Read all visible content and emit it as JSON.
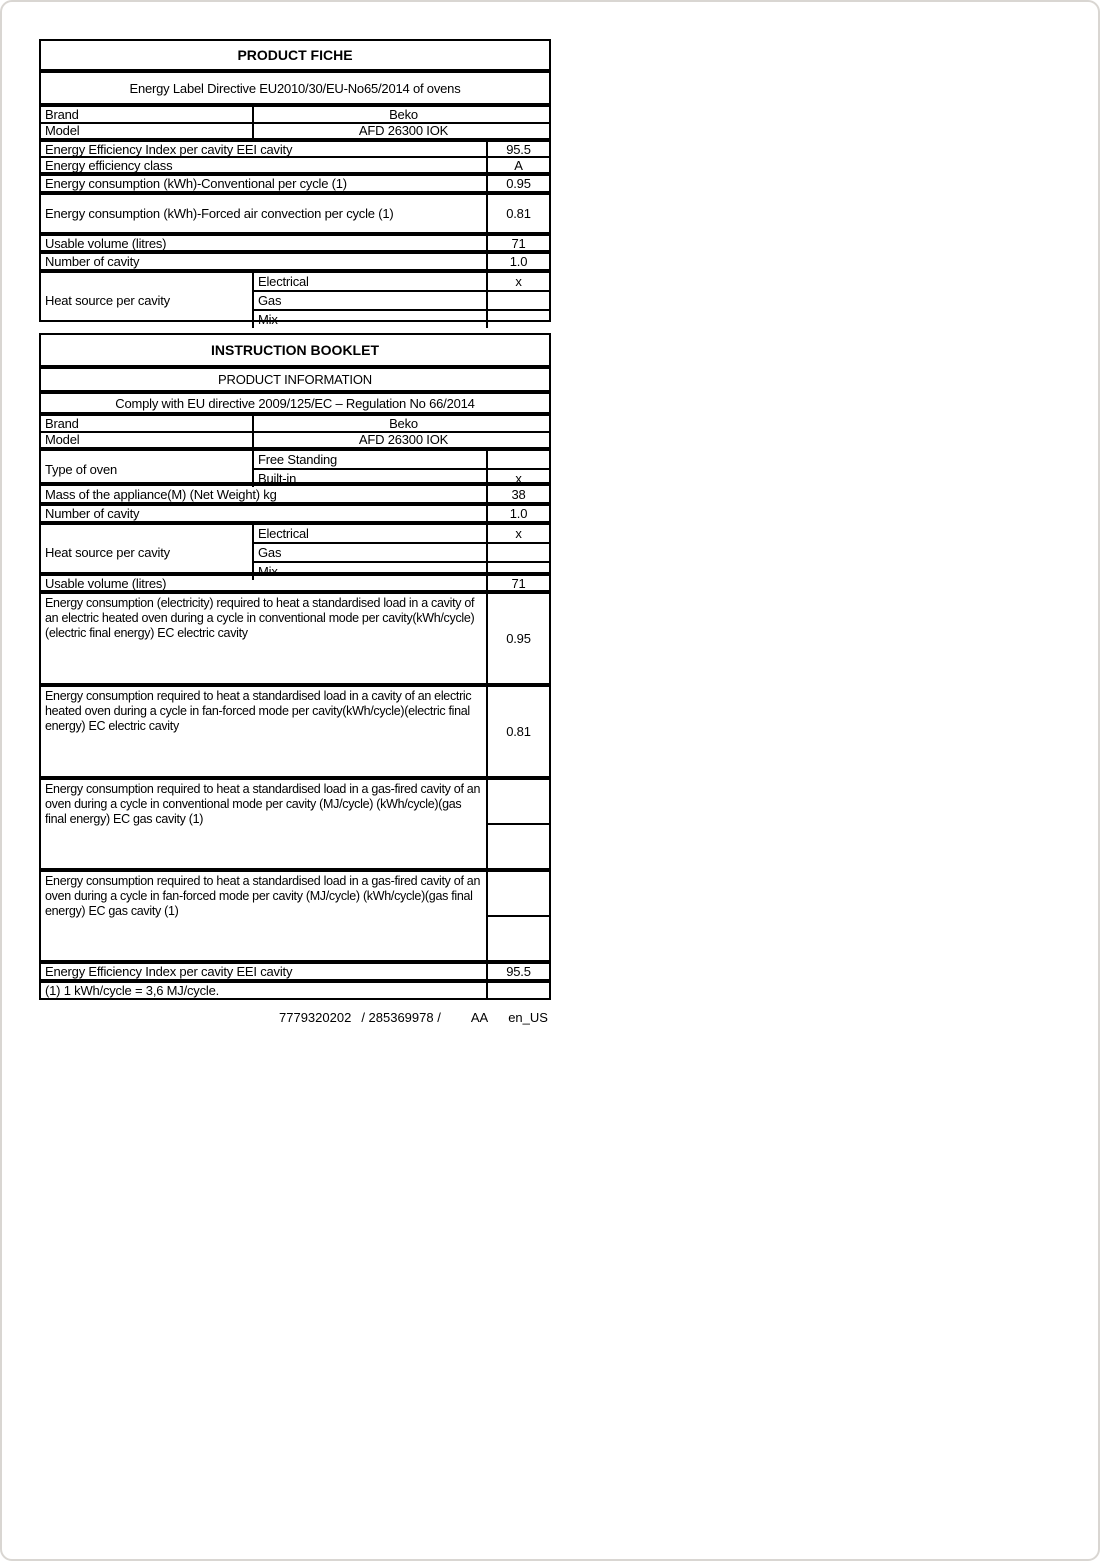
{
  "fiche": {
    "title": "PRODUCT FICHE",
    "directive": "Energy Label Directive EU2010/30/EU-No65/2014 of ovens",
    "brand": {
      "label": "Brand",
      "value": "Beko"
    },
    "model": {
      "label": "Model",
      "value": "AFD 26300 IOK"
    },
    "eei": {
      "label": "Energy Efficiency Index per cavity EEI cavity",
      "value": "95.5"
    },
    "efficiency_class": {
      "label": "Energy efficiency class",
      "value": "A"
    },
    "conventional": {
      "label": "Energy consumption (kWh)-Conventional per cycle (1)",
      "value": "0.95"
    },
    "forced_air": {
      "label": "Energy consumption (kWh)-Forced air convection per cycle (1)",
      "value": "0.81"
    },
    "volume": {
      "label": "Usable volume (litres)",
      "value": "71"
    },
    "cavity_count": {
      "label": "Number of cavity",
      "value": "1.0"
    },
    "heat_source": {
      "label": "Heat source per cavity",
      "options": [
        {
          "label": "Electrical",
          "value": "x"
        },
        {
          "label": "Gas",
          "value": ""
        },
        {
          "label": "Mix",
          "value": ""
        }
      ]
    }
  },
  "booklet": {
    "title": "INSTRUCTION BOOKLET",
    "subtitle": "PRODUCT INFORMATION",
    "directive": "Comply with EU directive 2009/125/EC – Regulation No 66/2014",
    "brand": {
      "label": "Brand",
      "value": "Beko"
    },
    "model": {
      "label": "Model",
      "value": "AFD 26300 IOK"
    },
    "oven_type": {
      "label": "Type of oven",
      "options": [
        {
          "label": "Free Standing",
          "value": ""
        },
        {
          "label": "Built-in",
          "value": "x"
        }
      ]
    },
    "mass": {
      "label": "Mass of the appliance(M) (Net Weight) kg",
      "value": "38"
    },
    "cavity_count": {
      "label": "Number of cavity",
      "value": "1.0"
    },
    "heat_source": {
      "label": "Heat source per cavity",
      "options": [
        {
          "label": "Electrical",
          "value": "x"
        },
        {
          "label": "Gas",
          "value": ""
        },
        {
          "label": "Mix",
          "value": ""
        }
      ]
    },
    "volume": {
      "label": "Usable volume (litres)",
      "value": "71"
    },
    "ec_electric_conventional": {
      "label": "Energy consumption (electricity) required to heat a standardised load in a cavity of an electric heated oven during a cycle in conventional mode per cavity(kWh/cycle)(electric final energy) EC electric cavity",
      "value": "0.95"
    },
    "ec_electric_fan": {
      "label": "Energy consumption required to heat a standardised load in a cavity of an electric heated oven during a cycle in fan-forced mode per cavity(kWh/cycle)(electric final energy) EC electric cavity",
      "value": "0.81"
    },
    "ec_gas_conventional": {
      "label": "Energy consumption required to heat a standardised load in a gas-fired cavity of an oven during a cycle in conventional mode per cavity (MJ/cycle) (kWh/cycle)(gas final energy) EC gas cavity (1)",
      "value": "",
      "value2": ""
    },
    "ec_gas_fan": {
      "label": "Energy consumption required to heat a standardised load in a gas-fired cavity of an oven during a cycle in fan-forced mode per cavity (MJ/cycle) (kWh/cycle)(gas final energy) EC gas cavity (1)",
      "value": "",
      "value2": ""
    },
    "eei": {
      "label": "Energy Efficiency Index per cavity EEI cavity",
      "value": "95.5"
    },
    "footnote": "(1) 1 kWh/cycle = 3,6 MJ/cycle."
  },
  "footer": {
    "code1": "7779320202",
    "code2": "/ 285369978 /",
    "revision": "AA",
    "language": "en_US"
  }
}
